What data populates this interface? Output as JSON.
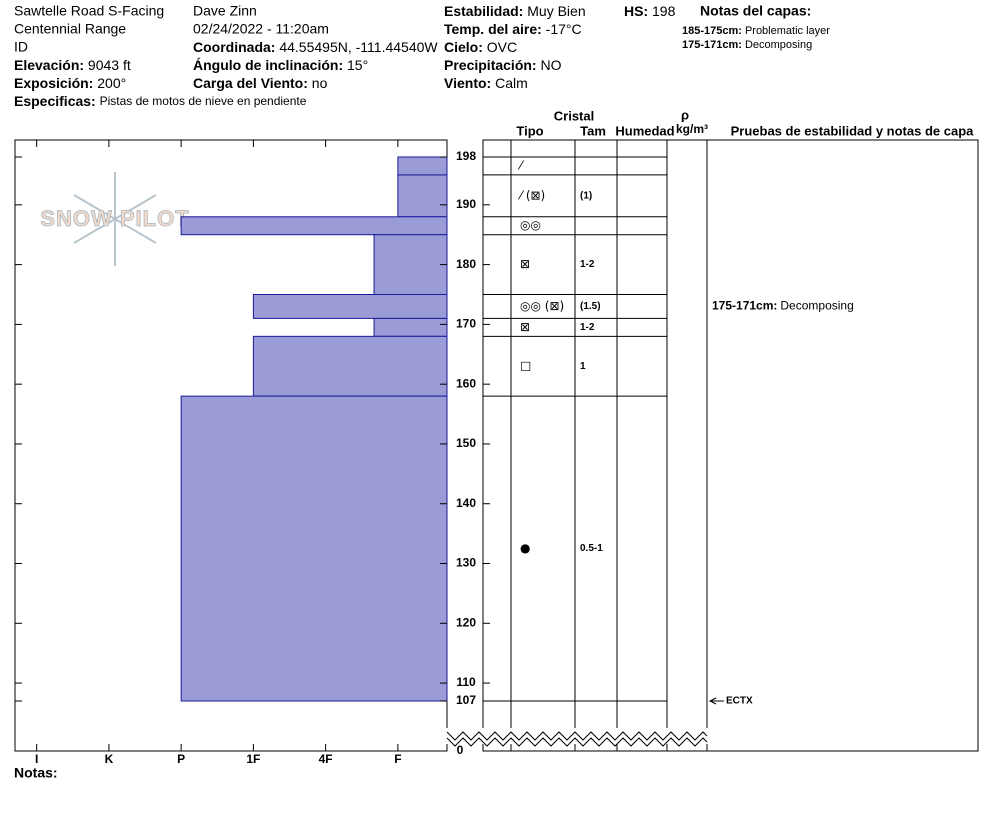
{
  "header": {
    "site": "Sawtelle Road S-Facing",
    "range": "Centennial Range",
    "id": "ID",
    "observer": "Dave Zinn",
    "datetime": "02/24/2022 - 11:20am",
    "fields": [
      {
        "label": "Elevación:",
        "value": "9043 ft"
      },
      {
        "label": "Exposición:",
        "value": "200°"
      },
      {
        "label": "Especificas:",
        "value": "Pistas de motos de nieve en pendiente"
      },
      {
        "label": "Coordinada:",
        "value": "44.55495N, -111.44540W"
      },
      {
        "label": "Ángulo de inclinación:",
        "value": "15°"
      },
      {
        "label": "Carga del Viento:",
        "value": "no"
      },
      {
        "label": "Estabilidad:",
        "value": "Muy Bien"
      },
      {
        "label": "Temp. del aire:",
        "value": "-17°C"
      },
      {
        "label": "Cielo:",
        "value": "OVC"
      },
      {
        "label": "Precipitación:",
        "value": "NO"
      },
      {
        "label": "Viento:",
        "value": "Calm"
      },
      {
        "label": "HS:",
        "value": "198"
      }
    ],
    "layer_notes": {
      "title": "Notas del capas:",
      "items": [
        {
          "range": "185-175cm:",
          "text": "Problematic layer"
        },
        {
          "range": "175-171cm:",
          "text": "Decomposing"
        }
      ]
    }
  },
  "logo": "SNOW PILOT",
  "notes_label": "Notas:",
  "chart_data": {
    "type": "snow-profile",
    "xlim": [
      6.3,
      0.32
    ],
    "xticks": [
      {
        "value": 6,
        "label": "I"
      },
      {
        "value": 5,
        "label": "K"
      },
      {
        "value": 4,
        "label": "P"
      },
      {
        "value": 3,
        "label": "1F"
      },
      {
        "value": 2,
        "label": "4F"
      },
      {
        "value": 1,
        "label": "F"
      }
    ],
    "ylim": [
      107,
      198
    ],
    "yticks": [
      107,
      110,
      120,
      130,
      140,
      150,
      160,
      170,
      180,
      190,
      198
    ],
    "ground_tick": 0,
    "color": "#9b9bd8",
    "edge_color": "#1a1a9a",
    "columns": {
      "crystal": "Cristal",
      "type": "Tipo",
      "size": "Tam",
      "moisture": "Humedad",
      "rho": "ρ",
      "density_unit": "kg/m³",
      "tests": "Pruebas de estabilidad y notas de capa"
    },
    "layers": [
      {
        "top": 198,
        "bottom": 195,
        "hardness": 1,
        "grain": "⁄"
      },
      {
        "top": 195,
        "bottom": 188,
        "hardness": 1,
        "grain": "⁄ (⊠)",
        "size": "(1)"
      },
      {
        "top": 188,
        "bottom": 185,
        "hardness": 4,
        "grain": "◎◎"
      },
      {
        "top": 185,
        "bottom": 175,
        "hardness": 1.33,
        "grain": "⊠",
        "size": "1-2"
      },
      {
        "top": 175,
        "bottom": 171,
        "hardness": 3,
        "grain": "◎◎ (⊠)",
        "size": "(1.5)",
        "note_range": "175-171cm:",
        "note": "Decomposing"
      },
      {
        "top": 171,
        "bottom": 168,
        "hardness": 1.33,
        "grain": "⊠",
        "size": "1-2"
      },
      {
        "top": 168,
        "bottom": 158,
        "hardness": 3,
        "grain": "□",
        "size": "1"
      },
      {
        "top": 158,
        "bottom": 107,
        "hardness": 4,
        "grain": "●",
        "size": "0.5-1"
      }
    ],
    "tests": [
      {
        "depth": 107,
        "label": "ECTX"
      }
    ]
  }
}
